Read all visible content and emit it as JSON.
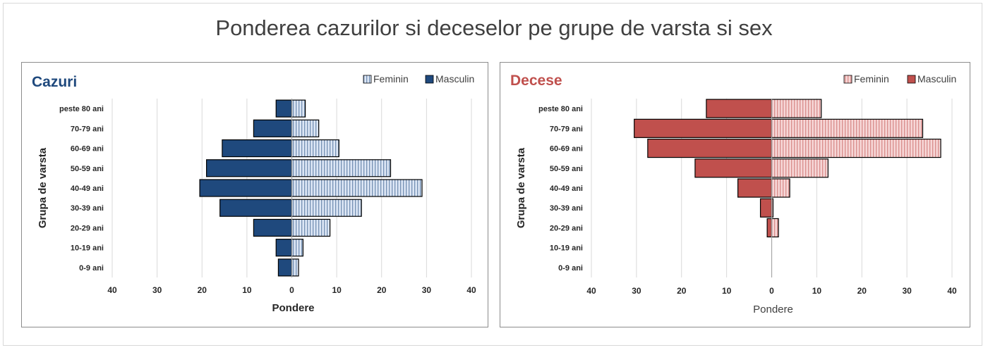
{
  "title": "Ponderea cazurilor si deceselor pe grupe de varsta si sex",
  "chart_data": [
    {
      "type": "bar",
      "orientation": "horizontal-population-pyramid",
      "title": "Cazuri",
      "title_color": "#1f497d",
      "categories": [
        "0-9 ani",
        "10-19 ani",
        "20-29 ani",
        "30-39 ani",
        "40-49 ani",
        "50-59 ani",
        "60-69 ani",
        "70-79 ani",
        "peste 80 ani"
      ],
      "series": [
        {
          "name": "Feminin",
          "values": [
            1.5,
            2.5,
            8.5,
            15.5,
            29,
            22,
            10.5,
            6,
            3
          ],
          "color": "#dce6f5",
          "pattern": "vertical-stripes",
          "stripe_color": "#1f497d"
        },
        {
          "name": "Masculin",
          "values": [
            3,
            3.5,
            8.5,
            16,
            20.5,
            19,
            15.5,
            8.5,
            3.5
          ],
          "color": "#1f497d"
        }
      ],
      "xlim": [
        -40,
        40
      ],
      "xticks": [
        "40",
        "30",
        "20",
        "10",
        "0",
        "10",
        "20",
        "30",
        "40"
      ],
      "xlabel": "Pondere",
      "ylabel": "Grupa de varsta",
      "legend_position": "top-right",
      "grid": true
    },
    {
      "type": "bar",
      "orientation": "horizontal-population-pyramid",
      "title": "Decese",
      "title_color": "#c0504d",
      "categories": [
        "0-9 ani",
        "10-19 ani",
        "20-29 ani",
        "30-39 ani",
        "40-49 ani",
        "50-59 ani",
        "60-69 ani",
        "70-79 ani",
        "peste 80 ani"
      ],
      "series": [
        {
          "name": "Feminin",
          "values": [
            0,
            0,
            1.5,
            0.3,
            4,
            12.5,
            37.5,
            33.5,
            11
          ],
          "color": "#f6d6d6",
          "pattern": "vertical-stripes",
          "stripe_color": "#c0504d"
        },
        {
          "name": "Masculin",
          "values": [
            0,
            0,
            1,
            2.5,
            7.5,
            17,
            27.5,
            30.5,
            14.5
          ],
          "color": "#c0504d"
        }
      ],
      "xlim": [
        -40,
        40
      ],
      "xticks": [
        "40",
        "30",
        "20",
        "10",
        "0",
        "10",
        "20",
        "30",
        "40"
      ],
      "xlabel": "Pondere",
      "ylabel": "Grupa de varsta",
      "legend_position": "top-right",
      "grid": true
    }
  ]
}
